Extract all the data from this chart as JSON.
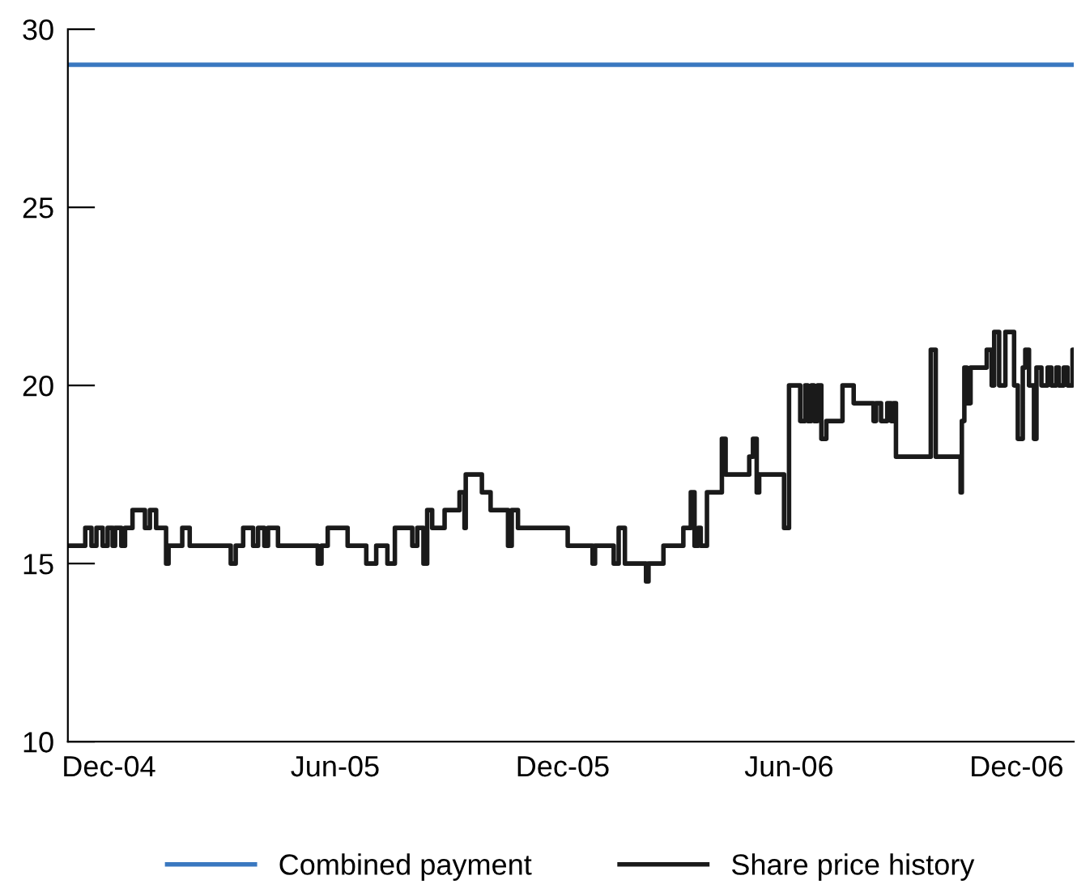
{
  "chart_data": {
    "type": "line",
    "xlim": [
      "2004-10-29",
      "2007-01-16"
    ],
    "xticks": [
      {
        "value": "2004-12-01",
        "label": "Dec-04"
      },
      {
        "value": "2005-06-01",
        "label": "Jun-05"
      },
      {
        "value": "2005-12-01",
        "label": "Dec-05"
      },
      {
        "value": "2006-06-01",
        "label": "Jun-06"
      },
      {
        "value": "2006-12-01",
        "label": "Dec-06"
      }
    ],
    "ylim": [
      10,
      30
    ],
    "yticks": [
      10,
      15,
      20,
      25,
      30
    ],
    "grid": false,
    "legend": "bottom",
    "line_style": "solid",
    "marker": "none",
    "series": [
      {
        "name": "Combined payment",
        "color": "#3a78c0",
        "x": [
          "2004-10-29",
          "2007-01-16"
        ],
        "values": [
          29,
          29
        ]
      },
      {
        "name": "Share price history",
        "type": "step",
        "color": "#1a1a1a",
        "x": [
          "2004-10-29",
          "2004-11-12",
          "2004-11-17",
          "2004-11-21",
          "2004-11-26",
          "2004-11-30",
          "2004-12-04",
          "2004-12-06",
          "2004-12-11",
          "2004-12-14",
          "2004-12-20",
          "2004-12-30",
          "2005-01-03",
          "2005-01-08",
          "2005-01-16",
          "2005-01-18",
          "2005-01-29",
          "2005-02-04",
          "2005-03-09",
          "2005-03-13",
          "2005-03-19",
          "2005-03-27",
          "2005-03-31",
          "2005-04-05",
          "2005-04-08",
          "2005-04-16",
          "2005-05-18",
          "2005-05-21",
          "2005-05-26",
          "2005-06-11",
          "2005-06-26",
          "2005-07-04",
          "2005-07-13",
          "2005-07-19",
          "2005-08-02",
          "2005-08-06",
          "2005-08-11",
          "2005-08-14",
          "2005-08-18",
          "2005-08-28",
          "2005-09-09",
          "2005-09-13",
          "2005-09-14",
          "2005-09-27",
          "2005-10-04",
          "2005-10-18",
          "2005-10-21",
          "2005-10-26",
          "2005-12-05",
          "2005-12-25",
          "2005-12-27",
          "2006-01-11",
          "2006-01-15",
          "2006-01-20",
          "2006-02-06",
          "2006-02-08",
          "2006-02-20",
          "2006-03-08",
          "2006-03-14",
          "2006-03-17",
          "2006-03-20",
          "2006-03-22",
          "2006-03-27",
          "2006-04-08",
          "2006-04-11",
          "2006-04-30",
          "2006-05-03",
          "2006-05-06",
          "2006-05-08",
          "2006-05-28",
          "2006-06-01",
          "2006-06-10",
          "2006-06-14",
          "2006-06-16",
          "2006-06-19",
          "2006-06-21",
          "2006-06-24",
          "2006-06-27",
          "2006-07-01",
          "2006-07-14",
          "2006-07-23",
          "2006-08-08",
          "2006-08-10",
          "2006-08-14",
          "2006-08-19",
          "2006-08-22",
          "2006-08-24",
          "2006-08-26",
          "2006-09-23",
          "2006-09-27",
          "2006-10-17",
          "2006-10-18",
          "2006-10-20",
          "2006-10-22",
          "2006-10-25",
          "2006-11-07",
          "2006-11-11",
          "2006-11-13",
          "2006-11-17",
          "2006-11-22",
          "2006-11-29",
          "2006-12-02",
          "2006-12-06",
          "2006-12-08",
          "2006-12-11",
          "2006-12-15",
          "2006-12-17",
          "2006-12-21",
          "2006-12-26",
          "2006-12-29",
          "2007-01-02",
          "2007-01-04",
          "2007-01-08",
          "2007-01-11",
          "2007-01-15",
          "2007-01-16"
        ],
        "values": [
          15.5,
          16,
          15.5,
          16,
          15.5,
          16,
          15.5,
          16,
          15.5,
          16,
          16.5,
          16,
          16.5,
          16,
          15,
          15.5,
          16,
          15.5,
          15,
          15.5,
          16,
          15.5,
          16,
          15.5,
          16,
          15.5,
          15,
          15.5,
          16,
          15.5,
          15,
          15.5,
          15,
          16,
          15.5,
          16,
          15,
          16.5,
          16,
          16.5,
          17,
          16,
          17.5,
          17,
          16.5,
          15.5,
          16.5,
          16,
          15.5,
          15,
          15.5,
          15,
          16,
          15,
          14.5,
          15,
          15.5,
          16,
          17,
          15.5,
          16,
          15.5,
          17,
          18.5,
          17.5,
          18,
          18.5,
          17,
          17.5,
          16,
          20,
          19,
          20,
          19,
          20,
          19,
          20,
          18.5,
          19,
          20,
          19.5,
          19,
          19.5,
          19,
          19.5,
          19,
          19.5,
          18,
          21,
          18,
          17,
          19,
          20.5,
          19.5,
          20.5,
          21,
          20,
          21.5,
          20,
          21.5,
          20,
          18.5,
          20.5,
          21,
          20,
          18.5,
          20.5,
          20,
          20.5,
          20,
          20.5,
          20,
          20.5,
          20,
          21,
          21
        ]
      }
    ]
  }
}
